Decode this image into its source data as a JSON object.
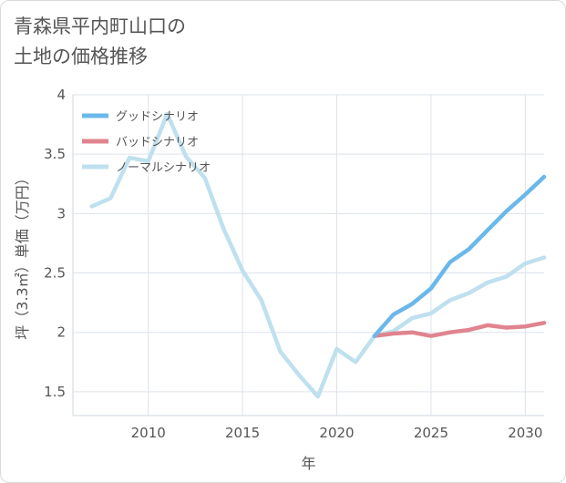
{
  "title": {
    "line1": "青森県平内町山口の",
    "line2": "土地の価格推移"
  },
  "chart_data": {
    "type": "line",
    "xlabel": "年",
    "ylabel": "坪（3.3㎡）単価（万円）",
    "xlim": [
      2006,
      2031
    ],
    "ylim": [
      1.3,
      4.0
    ],
    "x_ticks": [
      2010,
      2015,
      2020,
      2025,
      2030
    ],
    "y_ticks": [
      1.5,
      2,
      2.5,
      3,
      3.5,
      4
    ],
    "y_tick_labels": [
      "1.5",
      "2",
      "2.5",
      "3",
      "3.5",
      "4"
    ],
    "grid": true,
    "legend_position": "top-left",
    "series": [
      {
        "name": "グッドシナリオ",
        "color": "#6ab8ea",
        "x": [
          2022,
          2023,
          2024,
          2025,
          2026,
          2027,
          2028,
          2029,
          2030,
          2031
        ],
        "y": [
          1.97,
          2.15,
          2.24,
          2.37,
          2.59,
          2.7,
          2.86,
          3.02,
          3.16,
          3.31
        ]
      },
      {
        "name": "バッドシナリオ",
        "color": "#e0848f",
        "x": [
          2022,
          2023,
          2024,
          2025,
          2026,
          2027,
          2028,
          2029,
          2030,
          2031
        ],
        "y": [
          1.97,
          1.99,
          2.0,
          1.97,
          2.0,
          2.02,
          2.06,
          2.04,
          2.05,
          2.08
        ]
      },
      {
        "name": "ノーマルシナリオ",
        "color": "#bfe0ee",
        "x": [
          2007,
          2008,
          2009,
          2010,
          2011,
          2012,
          2013,
          2014,
          2015,
          2016,
          2017,
          2018,
          2019,
          2020,
          2021,
          2022,
          2023,
          2024,
          2025,
          2026,
          2027,
          2028,
          2029,
          2030,
          2031
        ],
        "y": [
          3.06,
          3.13,
          3.47,
          3.44,
          3.84,
          3.48,
          3.3,
          2.87,
          2.52,
          2.27,
          1.84,
          1.64,
          1.46,
          1.86,
          1.75,
          1.97,
          2.01,
          2.12,
          2.16,
          2.27,
          2.33,
          2.42,
          2.47,
          2.58,
          2.63
        ]
      }
    ]
  }
}
